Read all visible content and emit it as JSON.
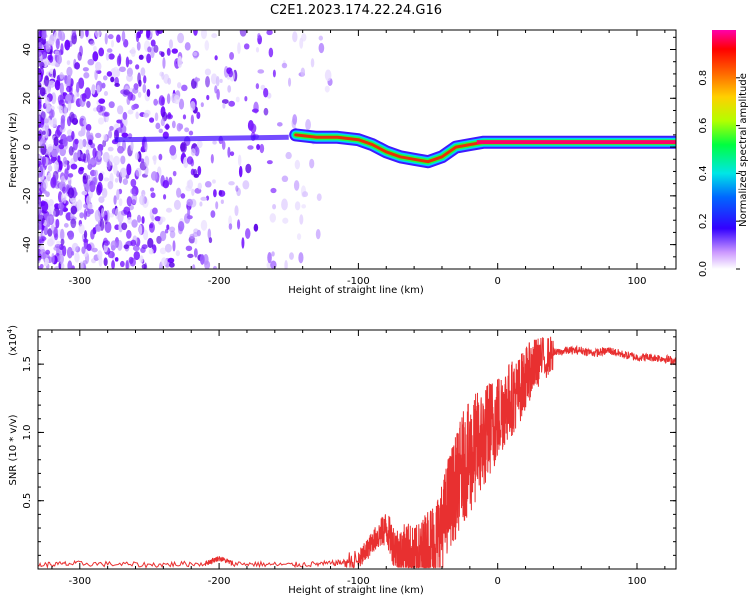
{
  "title": "C2E1.2023.174.22.24.G16",
  "chart_data": [
    {
      "type": "heatmap",
      "xlabel": "Height of straight line (km)",
      "ylabel": "Frequency (Hz)",
      "xlim": [
        -330,
        128
      ],
      "ylim": [
        -50,
        48
      ],
      "xticks": [
        -300,
        -200,
        -100,
        0,
        100
      ],
      "xtick_labels": [
        "-300",
        "-200",
        "-100",
        "0",
        "100"
      ],
      "yticks": [
        -40,
        -20,
        0,
        20,
        40
      ],
      "ytick_labels": [
        "-40",
        "-20",
        "0",
        "20",
        "40"
      ],
      "trace": {
        "x": [
          -145,
          -130,
          -115,
          -100,
          -90,
          -80,
          -70,
          -60,
          -50,
          -40,
          -30,
          -20,
          -10,
          0,
          20,
          50,
          80,
          100,
          128
        ],
        "y": [
          5,
          4,
          4,
          3,
          1,
          -2,
          -4,
          -5,
          -6,
          -4,
          0,
          1,
          2,
          2,
          2,
          2,
          2,
          2,
          2
        ]
      },
      "colorbar": {
        "label": "Normalized spectral amplitude",
        "range": [
          0,
          1
        ],
        "ticks": [
          0.0,
          0.2,
          0.4,
          0.6,
          0.8
        ],
        "tick_labels": [
          "0.0",
          "0.2",
          "0.4",
          "0.6",
          "0.8"
        ]
      },
      "grid": false
    },
    {
      "type": "line",
      "xlabel": "Height of straight line (km)",
      "ylabel": "SNR (10 * v/v)",
      "yscale_label": "(x10",
      "yscale_exp": "4",
      "yscale_close": ")",
      "xlim": [
        -330,
        128
      ],
      "ylim": [
        0,
        1.75
      ],
      "xticks": [
        -300,
        -200,
        -100,
        0,
        100
      ],
      "xtick_labels": [
        "-300",
        "-200",
        "-100",
        "0",
        "100"
      ],
      "yticks": [
        0.5,
        1.0,
        1.5
      ],
      "ytick_labels": [
        "0.5",
        "1.0",
        "1.5"
      ],
      "color": "#e83030",
      "series": [
        {
          "x": [
            -330,
            -300,
            -250,
            -210,
            -200,
            -190,
            -150,
            -120,
            -100,
            -95,
            -90,
            -85,
            -80,
            -75,
            -70,
            -65,
            -60,
            -55,
            -50,
            -45,
            -40,
            -35,
            -30,
            -25,
            -20,
            -15,
            -10,
            -5,
            0,
            5,
            10,
            15,
            20,
            25,
            30,
            40,
            50,
            60,
            70,
            80,
            90,
            100,
            110,
            120,
            128
          ],
          "y": [
            0.03,
            0.04,
            0.03,
            0.04,
            0.08,
            0.04,
            0.03,
            0.04,
            0.06,
            0.12,
            0.2,
            0.25,
            0.3,
            0.18,
            0.12,
            0.15,
            0.08,
            0.1,
            0.18,
            0.2,
            0.3,
            0.5,
            0.6,
            0.75,
            0.8,
            0.9,
            0.95,
            1.05,
            1.1,
            1.2,
            1.25,
            1.3,
            1.4,
            1.48,
            1.52,
            1.58,
            1.6,
            1.6,
            1.58,
            1.6,
            1.57,
            1.55,
            1.55,
            1.54,
            1.52
          ]
        }
      ],
      "grid": false
    }
  ]
}
